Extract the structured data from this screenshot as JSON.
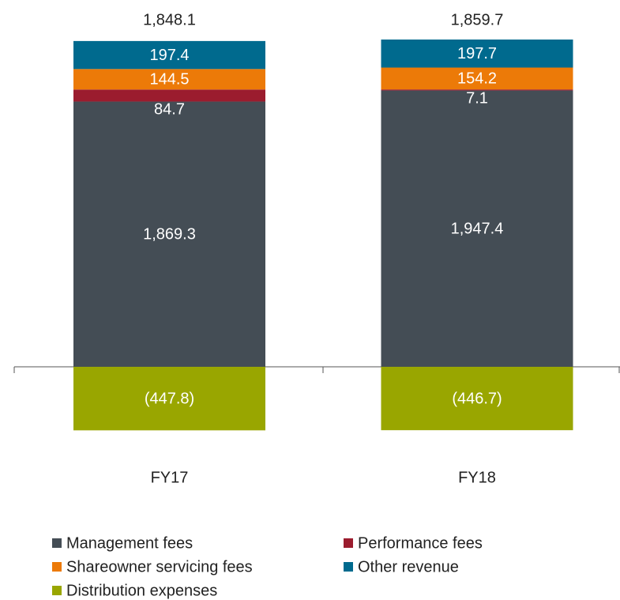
{
  "chart_data": {
    "type": "bar",
    "stacked": true,
    "categories": [
      "FY17",
      "FY18"
    ],
    "series": [
      {
        "name": "Management fees",
        "color": "#444d55",
        "values": [
          1869.3,
          1947.4
        ],
        "value_labels": [
          "1,869.3",
          "1,947.4"
        ]
      },
      {
        "name": "Performance fees",
        "color": "#9b1c2e",
        "values": [
          84.7,
          7.1
        ],
        "value_labels": [
          "84.7",
          "7.1"
        ]
      },
      {
        "name": "Shareowner servicing fees",
        "color": "#ec7a08",
        "values": [
          144.5,
          154.2
        ],
        "value_labels": [
          "144.5",
          "154.2"
        ]
      },
      {
        "name": "Other revenue",
        "color": "#006a8e",
        "values": [
          197.4,
          197.7
        ],
        "value_labels": [
          "197.4",
          "197.7"
        ]
      },
      {
        "name": "Distribution expenses",
        "color": "#99a600",
        "values": [
          -447.8,
          -446.7
        ],
        "value_labels": [
          "(447.8)",
          "(446.7)"
        ]
      }
    ],
    "totals": [
      1848.1,
      1859.7
    ],
    "total_labels": [
      "1,848.1",
      "1,859.7"
    ],
    "legend": "bottom"
  }
}
